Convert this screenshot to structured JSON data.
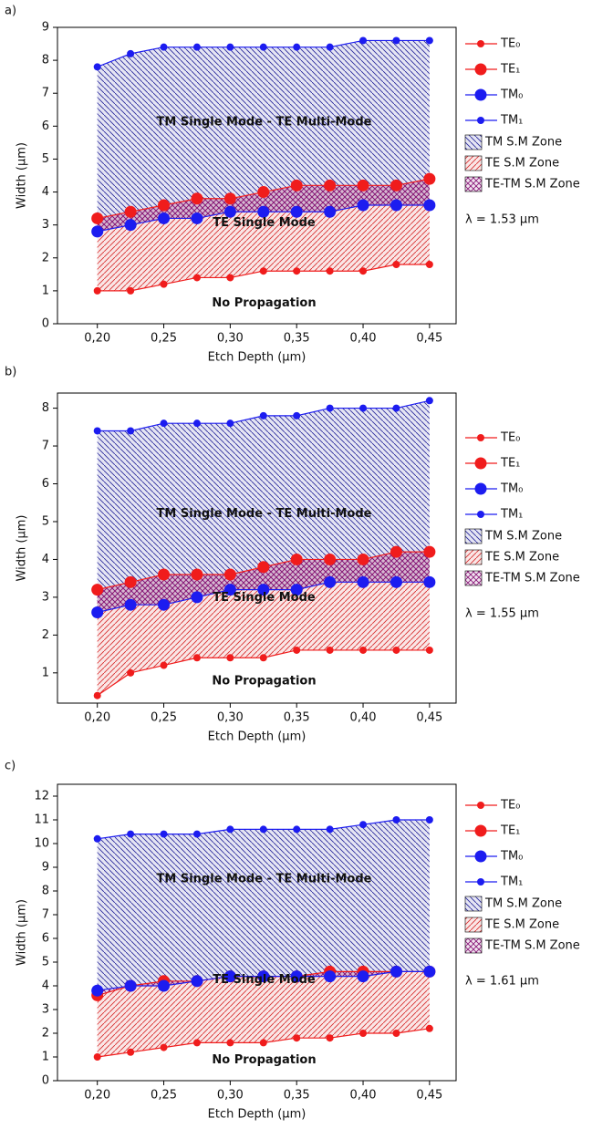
{
  "chart_data": [
    {
      "type": "line",
      "panel_label": "a)",
      "x_label": "Etch Depth (µm)",
      "y_label": "Width (µm)",
      "annotations": [
        "TM Single Mode - TE Multi-Mode",
        "TE Single Mode",
        "No Propagation"
      ],
      "wavelength_label": "λ = 1.53 µm",
      "x": [
        0.2,
        0.225,
        0.25,
        0.275,
        0.3,
        0.325,
        0.35,
        0.375,
        0.4,
        0.425,
        0.45
      ],
      "xlim": [
        0.17,
        0.47
      ],
      "xticks": [
        {
          "value": 0.2,
          "label": "0,20"
        },
        {
          "value": 0.25,
          "label": "0,25"
        },
        {
          "value": 0.3,
          "label": "0,30"
        },
        {
          "value": 0.35,
          "label": "0,35"
        },
        {
          "value": 0.4,
          "label": "0,40"
        },
        {
          "value": 0.45,
          "label": "0,45"
        }
      ],
      "ylim": [
        0,
        9
      ],
      "yticks": [
        0,
        1,
        2,
        3,
        4,
        5,
        6,
        7,
        8,
        9
      ],
      "series": [
        {
          "name": "TE₀",
          "color": "#f01c1c",
          "marker_size": 4,
          "values": [
            1.0,
            1.0,
            1.2,
            1.4,
            1.4,
            1.6,
            1.6,
            1.6,
            1.6,
            1.8,
            1.8
          ]
        },
        {
          "name": "TE₁",
          "color": "#f01c1c",
          "marker_size": 6.5,
          "values": [
            3.2,
            3.4,
            3.6,
            3.8,
            3.8,
            4.0,
            4.2,
            4.2,
            4.2,
            4.2,
            4.4
          ]
        },
        {
          "name": "TM₀",
          "color": "#1c1cf0",
          "marker_size": 6.5,
          "values": [
            2.8,
            3.0,
            3.2,
            3.2,
            3.4,
            3.4,
            3.4,
            3.4,
            3.6,
            3.6,
            3.6
          ]
        },
        {
          "name": "TM₁",
          "color": "#1c1cf0",
          "marker_size": 4,
          "values": [
            7.8,
            8.2,
            8.4,
            8.4,
            8.4,
            8.4,
            8.4,
            8.4,
            8.6,
            8.6,
            8.6
          ]
        }
      ],
      "zones": [
        {
          "name": "TM S.M Zone",
          "color": "#2a2a9c"
        },
        {
          "name": "TE  S.M Zone",
          "color": "#d83030"
        },
        {
          "name": "TE-TM S.M Zone",
          "color": "#8a1a7a"
        }
      ]
    },
    {
      "type": "line",
      "panel_label": "b)",
      "x_label": "Etch Depth (µm)",
      "y_label": "Width (µm)",
      "annotations": [
        "TM Single Mode - TE Multi-Mode",
        "TE Single Mode",
        "No Propagation"
      ],
      "wavelength_label": "λ = 1.55 µm",
      "x": [
        0.2,
        0.225,
        0.25,
        0.275,
        0.3,
        0.325,
        0.35,
        0.375,
        0.4,
        0.425,
        0.45
      ],
      "xlim": [
        0.17,
        0.47
      ],
      "xticks": [
        {
          "value": 0.2,
          "label": "0,20"
        },
        {
          "value": 0.25,
          "label": "0,25"
        },
        {
          "value": 0.3,
          "label": "0,30"
        },
        {
          "value": 0.35,
          "label": "0,35"
        },
        {
          "value": 0.4,
          "label": "0,40"
        },
        {
          "value": 0.45,
          "label": "0,45"
        }
      ],
      "ylim": [
        0.2,
        8.4
      ],
      "yticks": [
        1,
        2,
        3,
        4,
        5,
        6,
        7,
        8
      ],
      "series": [
        {
          "name": "TE₀",
          "color": "#f01c1c",
          "marker_size": 4,
          "values": [
            0.4,
            1.0,
            1.2,
            1.4,
            1.4,
            1.4,
            1.6,
            1.6,
            1.6,
            1.6,
            1.6
          ]
        },
        {
          "name": "TE₁",
          "color": "#f01c1c",
          "marker_size": 6.5,
          "values": [
            3.2,
            3.4,
            3.6,
            3.6,
            3.6,
            3.8,
            4.0,
            4.0,
            4.0,
            4.2,
            4.2
          ]
        },
        {
          "name": "TM₀",
          "color": "#1c1cf0",
          "marker_size": 6.5,
          "values": [
            2.6,
            2.8,
            2.8,
            3.0,
            3.2,
            3.2,
            3.2,
            3.4,
            3.4,
            3.4,
            3.4
          ]
        },
        {
          "name": "TM₁",
          "color": "#1c1cf0",
          "marker_size": 4,
          "values": [
            7.4,
            7.4,
            7.6,
            7.6,
            7.6,
            7.8,
            7.8,
            8.0,
            8.0,
            8.0,
            8.2
          ]
        }
      ],
      "zones": [
        {
          "name": "TM S.M Zone",
          "color": "#2a2a9c"
        },
        {
          "name": "TE  S.M Zone",
          "color": "#d83030"
        },
        {
          "name": "TE-TM S.M Zone",
          "color": "#8a1a7a"
        }
      ]
    },
    {
      "type": "line",
      "panel_label": "c)",
      "x_label": "Etch Depth (µm)",
      "y_label": "Width (µm)",
      "annotations": [
        "TM Single Mode - TE Multi-Mode",
        "TE Single Mode",
        "No Propagation"
      ],
      "wavelength_label": "λ = 1.61 µm",
      "x": [
        0.2,
        0.225,
        0.25,
        0.275,
        0.3,
        0.325,
        0.35,
        0.375,
        0.4,
        0.425,
        0.45
      ],
      "xlim": [
        0.17,
        0.47
      ],
      "xticks": [
        {
          "value": 0.2,
          "label": "0,20"
        },
        {
          "value": 0.25,
          "label": "0,25"
        },
        {
          "value": 0.3,
          "label": "0,30"
        },
        {
          "value": 0.35,
          "label": "0,35"
        },
        {
          "value": 0.4,
          "label": "0,40"
        },
        {
          "value": 0.45,
          "label": "0,45"
        }
      ],
      "ylim": [
        0,
        12.5
      ],
      "yticks": [
        0,
        1,
        2,
        3,
        4,
        5,
        6,
        7,
        8,
        9,
        10,
        11,
        12
      ],
      "series": [
        {
          "name": "TE₀",
          "color": "#f01c1c",
          "marker_size": 4,
          "values": [
            1.0,
            1.2,
            1.4,
            1.6,
            1.6,
            1.6,
            1.8,
            1.8,
            2.0,
            2.0,
            2.2
          ]
        },
        {
          "name": "TE₁",
          "color": "#f01c1c",
          "marker_size": 6.5,
          "values": [
            3.6,
            4.0,
            4.2,
            4.2,
            4.4,
            4.4,
            4.4,
            4.6,
            4.6,
            4.6,
            4.6
          ]
        },
        {
          "name": "TM₀",
          "color": "#1c1cf0",
          "marker_size": 6.5,
          "values": [
            3.8,
            4.0,
            4.0,
            4.2,
            4.4,
            4.4,
            4.4,
            4.4,
            4.4,
            4.6,
            4.6
          ]
        },
        {
          "name": "TM₁",
          "color": "#1c1cf0",
          "marker_size": 4,
          "values": [
            10.2,
            10.4,
            10.4,
            10.4,
            10.6,
            10.6,
            10.6,
            10.6,
            10.8,
            11.0,
            11.0
          ]
        }
      ],
      "zones": [
        {
          "name": "TM S.M Zone",
          "color": "#2a2a9c"
        },
        {
          "name": "TE  S.M Zone",
          "color": "#d83030"
        },
        {
          "name": "TE-TM S.M Zone",
          "color": "#8a1a7a"
        }
      ]
    }
  ]
}
